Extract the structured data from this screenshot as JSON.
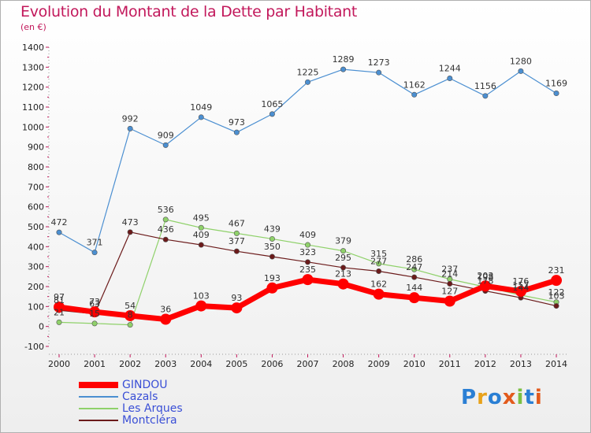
{
  "title": "Evolution du Montant de la Dette par Habitant",
  "subtitle": "(en €)",
  "logo_text": "Proxiti",
  "chart_data": {
    "type": "line",
    "title": "Evolution du Montant de la Dette par Habitant",
    "subtitle": "(en €)",
    "xlabel": "",
    "ylabel": "",
    "ylim": [
      -100,
      1400
    ],
    "ytick_step": 100,
    "grid": false,
    "legend_position": "bottom-left",
    "x": [
      "2000",
      "2001",
      "2002",
      "2003",
      "2004",
      "2005",
      "2006",
      "2007",
      "2008",
      "2009",
      "2010",
      "2011",
      "2012",
      "2013",
      "2014"
    ],
    "series": [
      {
        "name": "GINDOU",
        "color": "#ff0000",
        "values": [
          97,
          73,
          54,
          36,
          103,
          93,
          193,
          235,
          213,
          162,
          144,
          127,
          203,
          176,
          231
        ]
      },
      {
        "name": "Cazals",
        "color": "#4b8fd1",
        "values": [
          472,
          371,
          992,
          909,
          1049,
          973,
          1065,
          1225,
          1289,
          1273,
          1162,
          1244,
          1156,
          1280,
          1169
        ]
      },
      {
        "name": "Les Arques",
        "color": "#8fd16a",
        "values": [
          21,
          15,
          8,
          536,
          495,
          467,
          439,
          409,
          379,
          315,
          286,
          237,
          198,
          157,
          122
        ]
      },
      {
        "name": "Montcléra",
        "color": "#6b1a1a",
        "values": [
          81,
          63,
          473,
          436,
          409,
          377,
          350,
          323,
          295,
          277,
          247,
          214,
          178,
          144,
          103
        ]
      }
    ]
  }
}
